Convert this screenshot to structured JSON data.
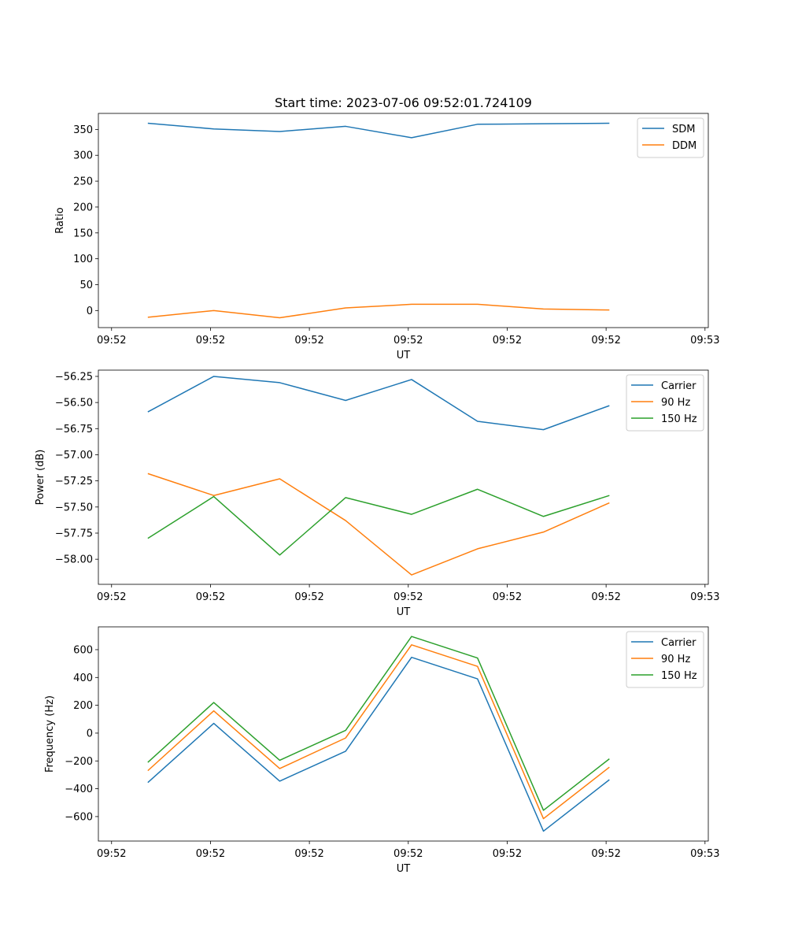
{
  "figure_title": "Start time: 2023-07-06 09:52:01.724109",
  "colors": {
    "c0": "#1f77b4",
    "c1": "#ff7f0e",
    "c2": "#2ca02c"
  },
  "chart_data": [
    {
      "type": "line",
      "title": "Start time: 2023-07-06 09:52:01.724109",
      "xlabel": "UT",
      "ylabel": "Ratio",
      "x": [
        1,
        2,
        3,
        4,
        5,
        6,
        7,
        8
      ],
      "xlim": [
        0.25,
        9.5
      ],
      "xticks": [
        0.45,
        1.95,
        3.45,
        4.95,
        6.45,
        7.95,
        9.45
      ],
      "xtick_labels": [
        "09:52",
        "09:52",
        "09:52",
        "09:52",
        "09:52",
        "09:52",
        "09:53"
      ],
      "ylim": [
        -33,
        381
      ],
      "yticks": [
        0,
        50,
        100,
        150,
        200,
        250,
        300,
        350
      ],
      "ytick_labels": [
        "0",
        "50",
        "100",
        "150",
        "200",
        "250",
        "300",
        "350"
      ],
      "legend": "top-right",
      "series": [
        {
          "name": "SDM",
          "color": "#1f77b4",
          "values": [
            362,
            351,
            346,
            356,
            334,
            360,
            361,
            362
          ]
        },
        {
          "name": "DDM",
          "color": "#ff7f0e",
          "values": [
            -13,
            0,
            -14,
            5,
            12,
            12,
            3,
            1
          ]
        }
      ]
    },
    {
      "type": "line",
      "xlabel": "UT",
      "ylabel": "Power (dB)",
      "x": [
        1,
        2,
        3,
        4,
        5,
        6,
        7,
        8
      ],
      "xlim": [
        0.25,
        9.5
      ],
      "xticks": [
        0.45,
        1.95,
        3.45,
        4.95,
        6.45,
        7.95,
        9.45
      ],
      "xtick_labels": [
        "09:52",
        "09:52",
        "09:52",
        "09:52",
        "09:52",
        "09:52",
        "09:53"
      ],
      "ylim": [
        -58.24,
        -56.19
      ],
      "yticks": [
        -58.0,
        -57.75,
        -57.5,
        -57.25,
        -57.0,
        -56.75,
        -56.5,
        -56.25
      ],
      "ytick_labels": [
        "−58.00",
        "−57.75",
        "−57.50",
        "−57.25",
        "−57.00",
        "−56.75",
        "−56.50",
        "−56.25"
      ],
      "legend": "top-right",
      "series": [
        {
          "name": "Carrier",
          "color": "#1f77b4",
          "values": [
            -56.59,
            -56.25,
            -56.31,
            -56.48,
            -56.28,
            -56.68,
            -56.76,
            -56.53
          ]
        },
        {
          "name": "90 Hz",
          "color": "#ff7f0e",
          "values": [
            -57.18,
            -57.39,
            -57.23,
            -57.63,
            -58.15,
            -57.9,
            -57.74,
            -57.46
          ]
        },
        {
          "name": "150 Hz",
          "color": "#2ca02c",
          "values": [
            -57.8,
            -57.4,
            -57.96,
            -57.41,
            -57.57,
            -57.33,
            -57.59,
            -57.39
          ]
        }
      ]
    },
    {
      "type": "line",
      "xlabel": "UT",
      "ylabel": "Frequency (Hz)",
      "x": [
        1,
        2,
        3,
        4,
        5,
        6,
        7,
        8
      ],
      "xlim": [
        0.25,
        9.5
      ],
      "xticks": [
        0.45,
        1.95,
        3.45,
        4.95,
        6.45,
        7.95,
        9.45
      ],
      "xtick_labels": [
        "09:52",
        "09:52",
        "09:52",
        "09:52",
        "09:52",
        "09:52",
        "09:53"
      ],
      "ylim": [
        -776,
        764
      ],
      "yticks": [
        -600,
        -400,
        -200,
        0,
        200,
        400,
        600
      ],
      "ytick_labels": [
        "−600",
        "−400",
        "−200",
        "0",
        "200",
        "400",
        "600"
      ],
      "legend": "top-right",
      "series": [
        {
          "name": "Carrier",
          "color": "#1f77b4",
          "values": [
            -355,
            70,
            -345,
            -130,
            545,
            390,
            -705,
            -335
          ]
        },
        {
          "name": "90 Hz",
          "color": "#ff7f0e",
          "values": [
            -270,
            160,
            -255,
            -35,
            635,
            480,
            -615,
            -245
          ]
        },
        {
          "name": "150 Hz",
          "color": "#2ca02c",
          "values": [
            -210,
            220,
            -195,
            20,
            695,
            540,
            -555,
            -185
          ]
        }
      ]
    }
  ]
}
